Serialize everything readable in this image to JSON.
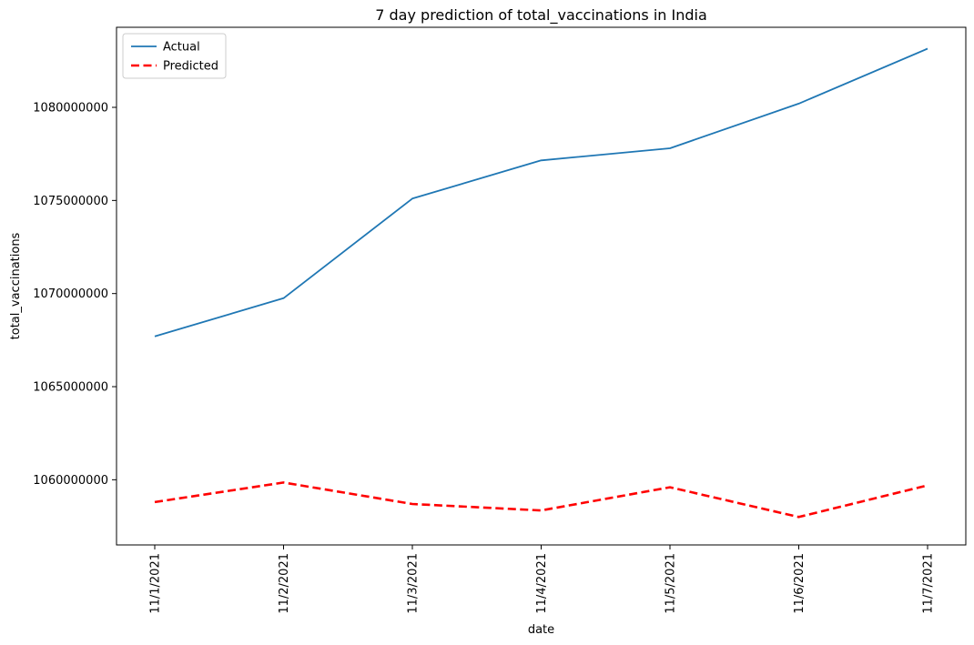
{
  "chart_data": {
    "type": "line",
    "title": "7 day prediction of total_vaccinations in India",
    "xlabel": "date",
    "ylabel": "total_vaccinations",
    "categories": [
      "11/1/2021",
      "11/2/2021",
      "11/3/2021",
      "11/4/2021",
      "11/5/2021",
      "11/6/2021",
      "11/7/2021"
    ],
    "yticks": [
      1060000000,
      1065000000,
      1070000000,
      1075000000,
      1080000000
    ],
    "ylim": [
      1056500000,
      1084300000
    ],
    "grid": false,
    "legend_position": "top-left",
    "series": [
      {
        "name": "Actual",
        "color": "#1f77b4",
        "style": "solid",
        "values": [
          1067700000,
          1069750000,
          1075100000,
          1077150000,
          1077800000,
          1080200000,
          1083150000
        ]
      },
      {
        "name": "Predicted",
        "color": "#ff0000",
        "style": "dashed",
        "values": [
          1058800000,
          1059850000,
          1058700000,
          1058350000,
          1059600000,
          1058000000,
          1059700000
        ]
      }
    ]
  }
}
